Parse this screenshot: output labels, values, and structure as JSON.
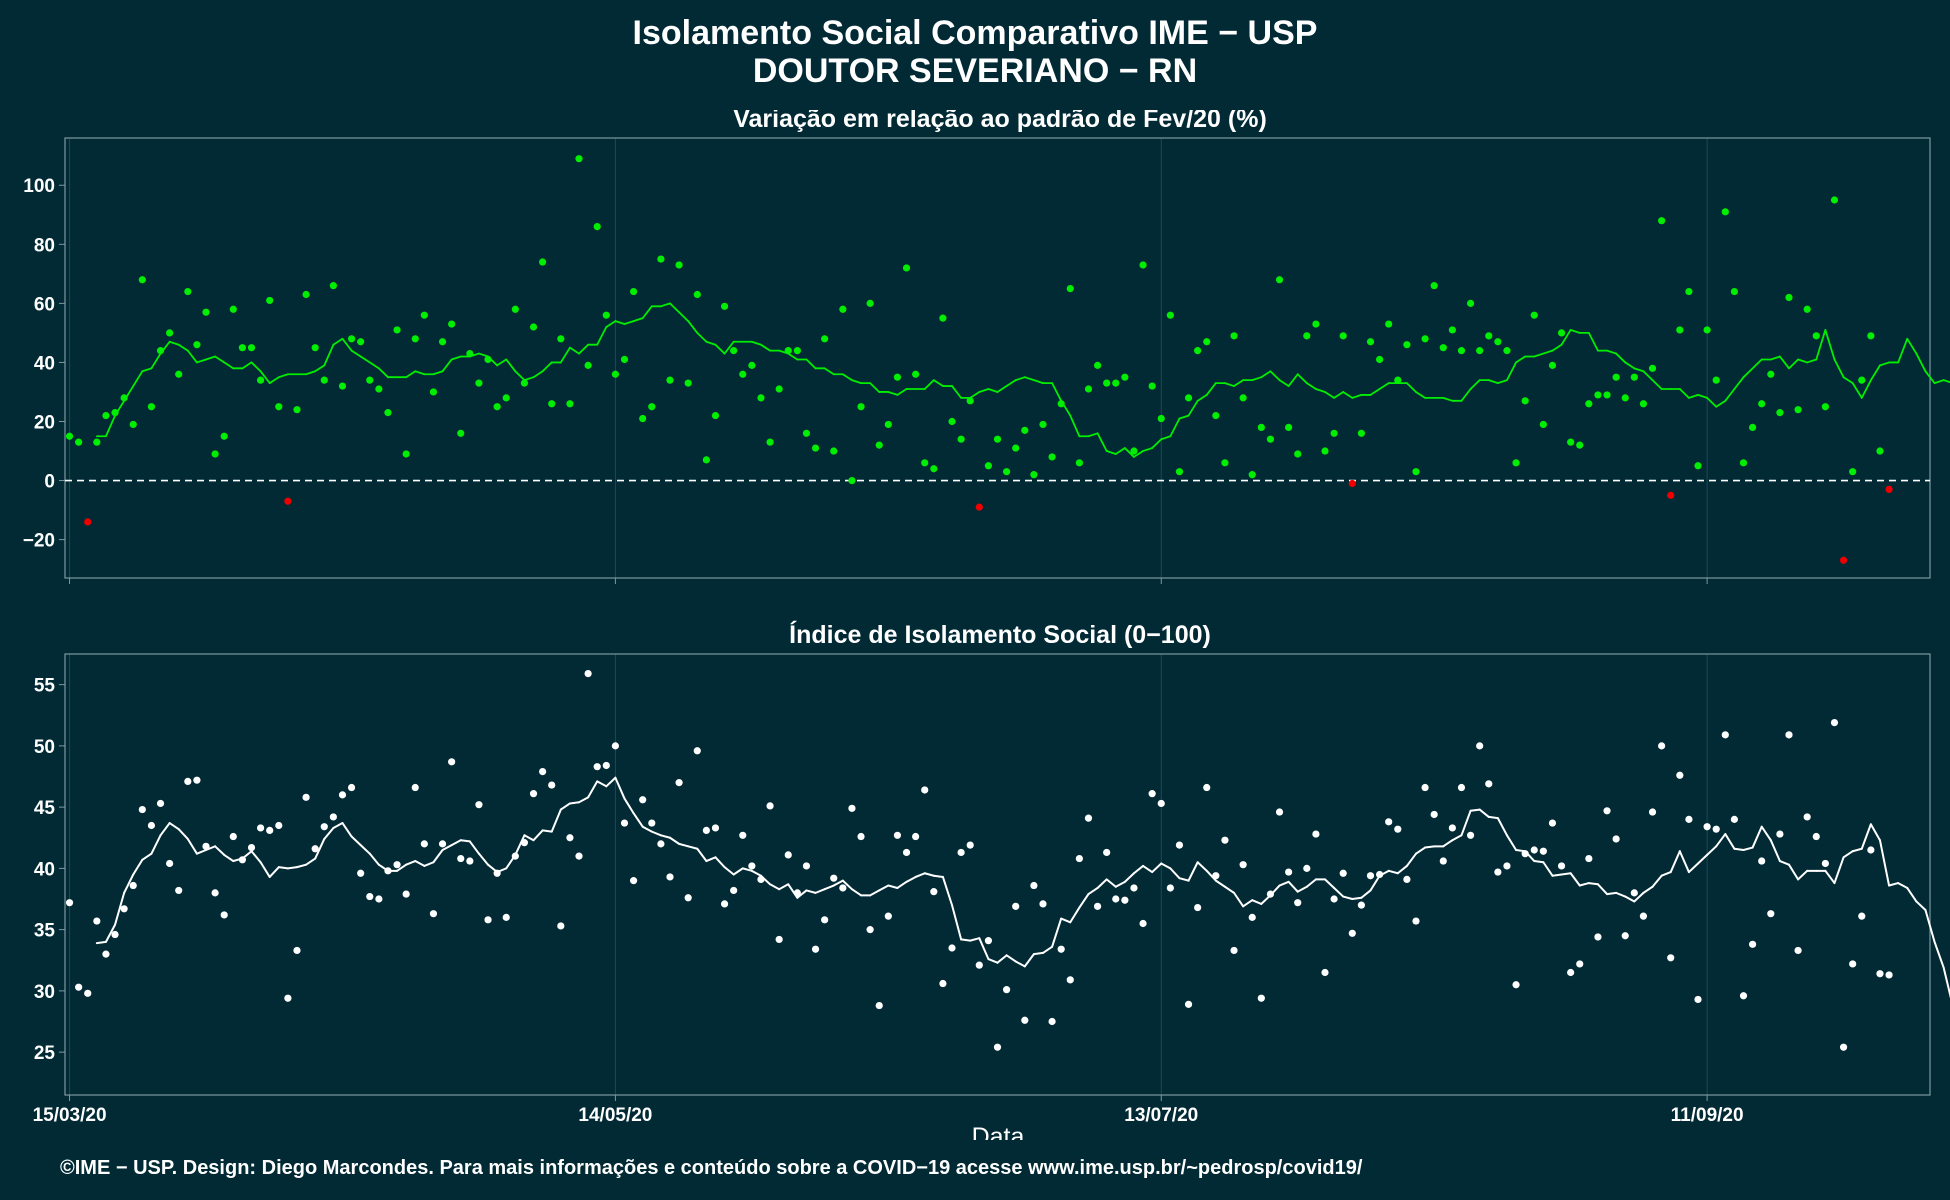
{
  "page": {
    "title_line1": "Isolamento Social Comparativo IME − USP",
    "title_line2": "DOUTOR SEVERIANO − RN",
    "footer": "©IME − USP. Design: Diego Marcondes. Para mais informações e conteúdo sobre a COVID−19 acesse www.ime.usp.br/~pedrosp/covid19/",
    "bg_color": "#012a35",
    "point_green": "#00ee00",
    "point_red": "#ee0000",
    "point_white": "#ffffff"
  },
  "chart_data": [
    {
      "type": "scatter",
      "title": "Variação em relação ao padrão de Fev/20 (%)",
      "xlabel": "",
      "ylabel": "",
      "x_start": "2020-03-15",
      "x_end": "2020-10-05",
      "x_ticks": [
        {
          "date": "2020-03-15",
          "label": "15/03/20"
        },
        {
          "date": "2020-05-14",
          "label": "14/05/20"
        },
        {
          "date": "2020-07-13",
          "label": "13/07/20"
        },
        {
          "date": "2020-09-11",
          "label": "11/09/20"
        }
      ],
      "ylim": [
        -33,
        116
      ],
      "y_ticks": [
        -20,
        0,
        20,
        40,
        60,
        80,
        100
      ],
      "reference_line": 0,
      "grid": true,
      "series": [
        {
          "name": "",
          "kind": "points",
          "color_rule": "green when value >= 0, red when value < 0",
          "values": [
            15,
            13,
            -14,
            13,
            22,
            23,
            28,
            19,
            68,
            25,
            44,
            50,
            36,
            64,
            46,
            57,
            9,
            15,
            58,
            45,
            45,
            34,
            61,
            25,
            -7,
            24,
            63,
            45,
            34,
            66,
            32,
            48,
            47,
            34,
            31,
            23,
            51,
            9,
            48,
            56,
            30,
            47,
            53,
            16,
            43,
            33,
            41,
            25,
            28,
            58,
            33,
            52,
            74,
            26,
            48,
            26,
            109,
            39,
            86,
            56,
            36,
            41,
            64,
            21,
            25,
            75,
            34,
            73,
            33,
            63,
            7,
            22,
            59,
            44,
            36,
            39,
            28,
            13,
            31,
            44,
            44,
            16,
            11,
            48,
            10,
            58,
            0,
            25,
            60,
            12,
            19,
            35,
            72,
            36,
            6,
            4,
            55,
            20,
            14,
            27,
            -9,
            5,
            14,
            3,
            11,
            17,
            2,
            19,
            8,
            26,
            65,
            6,
            31,
            39,
            33,
            33,
            35,
            10,
            73,
            32,
            21,
            56,
            3,
            28,
            44,
            47,
            22,
            6,
            49,
            28,
            2,
            18,
            14,
            68,
            18,
            9,
            49,
            53,
            10,
            16,
            49,
            -1,
            16,
            47,
            41,
            53,
            34,
            46,
            3,
            48,
            66,
            45,
            51,
            44,
            60,
            44,
            49,
            47,
            44,
            6,
            27,
            56,
            19,
            39,
            50,
            13,
            12,
            26,
            29,
            29,
            35,
            28,
            35,
            26,
            38,
            88,
            -5,
            51,
            64,
            5,
            51,
            34,
            91,
            64,
            6,
            18,
            26,
            36,
            23,
            62,
            24,
            58,
            49,
            25,
            95,
            -27,
            3,
            34,
            49,
            10,
            -3
          ]
        },
        {
          "name": "",
          "kind": "line",
          "color_rule": "green when value >= 0, red when value < 0",
          "values": [
            null,
            null,
            null,
            15,
            15,
            22,
            27,
            32,
            37,
            38,
            43,
            47,
            46,
            44,
            40,
            41,
            42,
            40,
            38,
            38,
            40,
            37,
            33,
            35,
            36,
            36,
            36,
            37,
            39,
            46,
            48,
            44,
            42,
            40,
            38,
            35,
            35,
            35,
            37,
            36,
            36,
            37,
            41,
            42,
            42,
            43,
            42,
            39,
            41,
            37,
            34,
            35,
            37,
            40,
            40,
            45,
            43,
            46,
            46,
            52,
            54,
            53,
            54,
            55,
            59,
            59,
            60,
            57,
            54,
            50,
            47,
            46,
            43,
            47,
            47,
            47,
            46,
            44,
            44,
            43,
            41,
            41,
            38,
            38,
            36,
            36,
            34,
            33,
            33,
            30,
            30,
            29,
            31,
            31,
            31,
            34,
            32,
            32,
            28,
            28,
            30,
            31,
            30,
            32,
            34,
            35,
            34,
            33,
            33,
            27,
            22,
            15,
            15,
            16,
            10,
            9,
            11,
            8,
            10,
            11,
            14,
            15,
            21,
            22,
            27,
            29,
            33,
            33,
            32,
            34,
            34,
            35,
            37,
            34,
            32,
            36,
            33,
            31,
            30,
            28,
            30,
            28,
            29,
            29,
            31,
            33,
            33,
            33,
            30,
            28,
            28,
            28,
            27,
            27,
            31,
            34,
            34,
            33,
            34,
            40,
            42,
            42,
            43,
            44,
            46,
            51,
            50,
            50,
            44,
            44,
            43,
            40,
            38,
            37,
            34,
            31,
            31,
            31,
            28,
            29,
            28,
            25,
            27,
            31,
            35,
            38,
            41,
            41,
            42,
            38,
            41,
            40,
            41,
            51,
            41,
            35,
            33,
            28,
            34,
            39,
            40,
            40,
            48,
            43,
            37,
            33,
            34,
            33,
            30,
            26,
            23
          ]
        }
      ]
    },
    {
      "type": "scatter",
      "title": "Índice de Isolamento Social (0−100)",
      "xlabel": "Data",
      "ylabel": "",
      "x_start": "2020-03-15",
      "x_end": "2020-10-05",
      "x_ticks": [
        {
          "date": "2020-03-15",
          "label": "15/03/20"
        },
        {
          "date": "2020-05-14",
          "label": "14/05/20"
        },
        {
          "date": "2020-07-13",
          "label": "13/07/20"
        },
        {
          "date": "2020-09-11",
          "label": "11/09/20"
        }
      ],
      "ylim": [
        21.5,
        57.5
      ],
      "y_ticks": [
        25,
        30,
        35,
        40,
        45,
        50,
        55
      ],
      "grid": true,
      "series": [
        {
          "name": "",
          "kind": "points",
          "values": [
            37.2,
            30.3,
            29.8,
            35.7,
            33.0,
            34.6,
            36.7,
            38.6,
            44.8,
            43.5,
            45.3,
            40.4,
            38.2,
            47.1,
            47.2,
            41.8,
            38.0,
            36.2,
            42.6,
            40.7,
            41.7,
            43.3,
            43.1,
            43.5,
            29.4,
            33.3,
            45.8,
            41.6,
            43.4,
            44.2,
            46.0,
            46.6,
            39.6,
            37.7,
            37.5,
            39.8,
            40.3,
            37.9,
            46.6,
            42.0,
            36.3,
            42.0,
            48.7,
            40.8,
            40.6,
            45.2,
            35.8,
            39.6,
            36.0,
            41.0,
            42.1,
            46.1,
            47.9,
            46.8,
            35.3,
            42.5,
            41.0,
            55.9,
            48.3,
            48.4,
            50.0,
            43.7,
            39.0,
            45.6,
            43.7,
            42.0,
            39.3,
            47.0,
            37.6,
            49.6,
            43.1,
            43.3,
            37.1,
            38.2,
            42.7,
            40.2,
            39.1,
            45.1,
            34.2,
            41.1,
            38.0,
            40.2,
            33.4,
            35.8,
            39.2,
            38.4,
            44.9,
            42.6,
            35.0,
            28.8,
            36.1,
            42.7,
            41.3,
            42.6,
            46.4,
            38.1,
            30.6,
            33.5,
            41.3,
            41.9,
            32.1,
            34.1,
            25.4,
            30.1,
            36.9,
            27.6,
            38.6,
            37.1,
            27.5,
            33.4,
            30.9,
            40.8,
            44.1,
            36.9,
            41.3,
            37.5,
            37.4,
            38.4,
            35.5,
            46.1,
            45.3,
            38.4,
            41.9,
            28.9,
            36.8,
            46.6,
            39.4,
            42.3,
            33.3,
            40.3,
            36.0,
            29.4,
            37.9,
            44.6,
            39.7,
            37.2,
            40.0,
            42.8,
            31.5,
            37.5,
            39.6,
            34.7,
            37.0,
            39.4,
            39.5,
            43.8,
            43.2,
            39.1,
            35.7,
            46.6,
            44.4,
            40.6,
            43.3,
            46.6,
            42.7,
            50.0,
            46.9,
            39.7,
            40.2,
            30.5,
            41.2,
            41.5,
            41.4,
            43.7,
            40.2,
            31.5,
            32.2,
            40.8,
            34.4,
            44.7,
            42.4,
            34.5,
            38.0,
            36.1,
            44.6,
            50.0,
            32.7,
            47.6,
            44.0,
            29.3,
            43.4,
            43.2,
            50.9,
            44.0,
            29.6,
            33.8,
            40.6,
            36.3,
            42.8,
            50.9,
            33.3,
            44.2,
            42.6,
            40.4,
            51.9,
            25.4,
            32.2,
            36.1,
            41.5,
            31.4,
            31.3
          ]
        },
        {
          "name": "",
          "kind": "line",
          "values": [
            null,
            null,
            null,
            33.9,
            34.0,
            35.4,
            38.0,
            39.5,
            40.7,
            41.2,
            42.7,
            43.7,
            43.2,
            42.4,
            41.2,
            41.5,
            41.8,
            41.1,
            40.6,
            40.8,
            41.4,
            40.5,
            39.3,
            40.1,
            40.0,
            40.1,
            40.3,
            40.8,
            42.4,
            43.3,
            43.7,
            42.6,
            41.9,
            41.2,
            40.3,
            39.8,
            39.8,
            40.3,
            40.6,
            40.2,
            40.5,
            41.5,
            41.9,
            42.3,
            42.2,
            41.2,
            40.3,
            39.7,
            40.0,
            41.1,
            42.7,
            42.3,
            43.1,
            43.0,
            44.8,
            45.3,
            45.4,
            45.8,
            47.1,
            46.7,
            47.4,
            45.7,
            44.5,
            43.4,
            43.0,
            42.7,
            42.5,
            42.0,
            41.8,
            41.6,
            40.6,
            40.9,
            40.1,
            39.5,
            40.0,
            39.8,
            39.4,
            38.7,
            38.3,
            38.7,
            37.6,
            38.2,
            38.0,
            38.3,
            38.6,
            39.0,
            38.3,
            37.8,
            37.8,
            38.2,
            38.6,
            38.4,
            38.9,
            39.3,
            39.6,
            39.4,
            39.3,
            37.0,
            34.2,
            34.1,
            34.3,
            32.6,
            32.3,
            32.9,
            32.4,
            32.0,
            33.0,
            33.1,
            33.6,
            35.9,
            35.6,
            36.8,
            37.9,
            38.4,
            39.1,
            38.5,
            38.9,
            39.6,
            40.2,
            39.7,
            40.4,
            40.0,
            39.2,
            39.0,
            40.5,
            39.8,
            39.0,
            38.5,
            38.0,
            36.9,
            37.4,
            37.1,
            37.8,
            38.6,
            38.9,
            38.1,
            38.5,
            39.1,
            39.1,
            38.4,
            37.7,
            37.5,
            37.6,
            38.2,
            39.4,
            39.8,
            39.6,
            40.2,
            41.2,
            41.7,
            41.8,
            41.8,
            42.3,
            42.7,
            44.7,
            44.8,
            44.2,
            44.1,
            42.7,
            41.5,
            41.4,
            40.6,
            40.5,
            39.4,
            39.5,
            39.6,
            38.6,
            38.8,
            38.7,
            37.9,
            38.0,
            37.7,
            37.3,
            38.0,
            38.5,
            39.4,
            39.7,
            41.4,
            39.7,
            40.4,
            41.1,
            41.8,
            42.8,
            41.6,
            41.5,
            41.7,
            43.4,
            42.3,
            40.6,
            40.3,
            39.1,
            39.8,
            39.8,
            39.8,
            38.8,
            40.9,
            41.4,
            41.6,
            43.6,
            42.3,
            38.6,
            38.8,
            38.4,
            37.3,
            36.6,
            34.0,
            31.9,
            28.8,
            22.2
          ]
        }
      ]
    }
  ]
}
